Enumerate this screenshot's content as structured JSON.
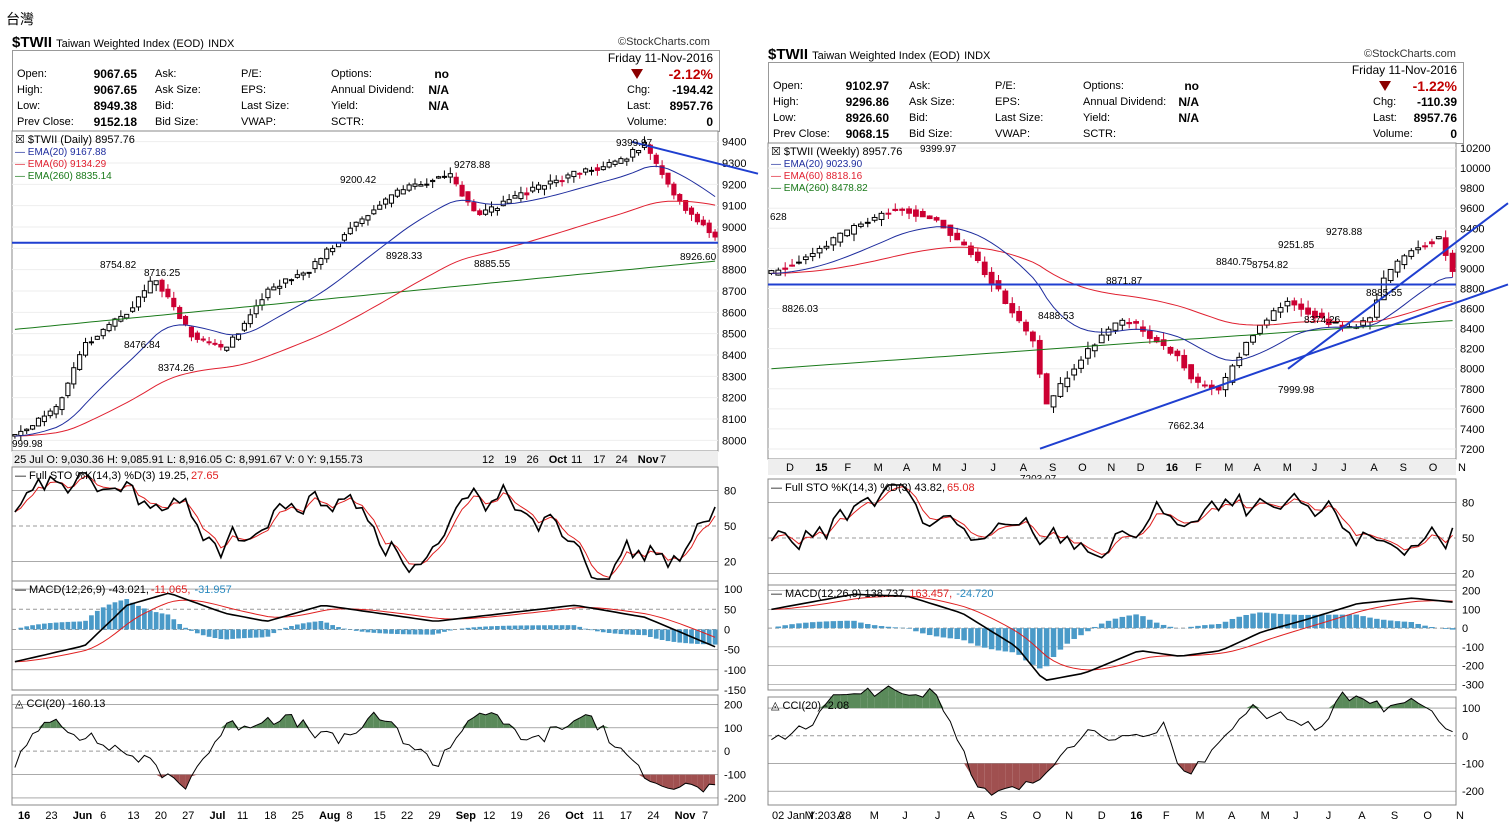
{
  "page": {
    "title": "台灣"
  },
  "panels": [
    {
      "symbol": "$TWII",
      "description": "Taiwan Weighted Index (EOD)",
      "exchange": "INDX",
      "watermark": "©StockCharts.com",
      "quote": {
        "rows": [
          {
            "l1": "Open:",
            "v1": "9067.65",
            "l2": "Ask:",
            "l3": "P/E:",
            "l4": "Options:",
            "v4": "no"
          },
          {
            "l1": "High:",
            "v1": "9067.65",
            "l2": "Ask Size:",
            "l3": "EPS:",
            "l4": "Annual Dividend:",
            "v4": "N/A"
          },
          {
            "l1": "Low:",
            "v1": "8949.38",
            "l2": "Bid:",
            "l3": "Last Size:",
            "l4": "Yield:",
            "v4": "N/A"
          },
          {
            "l1": "Prev Close:",
            "v1": "9152.18",
            "l2": "Bid Size:",
            "l3": "VWAP:",
            "l4": "SCTR:",
            "v4": ""
          }
        ],
        "date": "Friday  11-Nov-2016",
        "pct_change": "-2.12%",
        "right": [
          {
            "label": "Chg:",
            "value": "-194.42"
          },
          {
            "label": "Last:",
            "value": "8957.76"
          },
          {
            "label": "Volume:",
            "value": "0"
          }
        ]
      },
      "price_legend": {
        "series": "$TWII (Daily) 8957.76",
        "ema20": "EMA(20) 9167.88",
        "ema60": "EMA(60) 9134.29",
        "ema260": "EMA(260) 8835.14"
      },
      "ohlc_readout": "25 Jul O: 9,030.36   H: 9,085.91   L: 8,916.05   C: 8,991.67   V: 0   Y: 9,155.73",
      "price_date_labels": [
        "12",
        "19",
        "26",
        "Oct",
        "11",
        "17",
        "24",
        "Nov",
        "7"
      ],
      "bottom_date_labels": [
        "16",
        "23",
        "Jun",
        "6",
        "13",
        "20",
        "27",
        "Jul",
        "11",
        "18",
        "25",
        "Aug",
        "8",
        "15",
        "22",
        "29",
        "Sep",
        "12",
        "19",
        "26",
        "Oct",
        "11",
        "17",
        "24",
        "Nov",
        "7"
      ],
      "sto_legend": {
        "main": "Full STO %K(14,3) %D(3) 19.25,",
        "d": "27.65"
      },
      "macd_legend": {
        "main": "MACD(12,26,9) -43.021,",
        "signal": "-11.065,",
        "hist": "-31.957"
      },
      "cci_legend": "CCI(20) -160.13",
      "annotations": [
        "9399.97",
        "9278.88",
        "9200.42",
        "8928.33",
        "8885.55",
        "8926.60",
        "8754.82",
        "8716.25",
        "8476.84",
        "8374.26",
        "999.98"
      ],
      "price_axis": [
        9400,
        9300,
        9200,
        9100,
        9000,
        8900,
        8800,
        8700,
        8600,
        8500,
        8400,
        8300,
        8200,
        8100,
        8000
      ],
      "sto_axis": [
        80,
        50,
        20
      ],
      "macd_axis": [
        100,
        50,
        0,
        -50,
        -100,
        -150
      ],
      "cci_axis": [
        200,
        100,
        0,
        -100,
        -200
      ]
    },
    {
      "symbol": "$TWII",
      "description": "Taiwan Weighted Index (EOD)",
      "exchange": "INDX",
      "watermark": "©StockCharts.com",
      "quote": {
        "rows": [
          {
            "l1": "Open:",
            "v1": "9102.97",
            "l2": "Ask:",
            "l3": "P/E:",
            "l4": "Options:",
            "v4": "no"
          },
          {
            "l1": "High:",
            "v1": "9296.86",
            "l2": "Ask Size:",
            "l3": "EPS:",
            "l4": "Annual Dividend:",
            "v4": "N/A"
          },
          {
            "l1": "Low:",
            "v1": "8926.60",
            "l2": "Bid:",
            "l3": "Last Size:",
            "l4": "Yield:",
            "v4": "N/A"
          },
          {
            "l1": "Prev Close:",
            "v1": "9068.15",
            "l2": "Bid Size:",
            "l3": "VWAP:",
            "l4": "SCTR:",
            "v4": ""
          }
        ],
        "date": "Friday  11-Nov-2016",
        "pct_change": "-1.22%",
        "right": [
          {
            "label": "Chg:",
            "value": "-110.39"
          },
          {
            "label": "Last:",
            "value": "8957.76"
          },
          {
            "label": "Volume:",
            "value": "0"
          }
        ]
      },
      "price_legend": {
        "series": "$TWII (Weekly) 8957.76",
        "ema20": "EMA(20) 9023.90",
        "ema60": "EMA(60) 8818.16",
        "ema260": "EMA(260) 8478.82"
      },
      "ohlc_readout": "",
      "price_date_labels": [
        "D",
        "15",
        "F",
        "M",
        "A",
        "M",
        "J",
        "J",
        "A",
        "S",
        "O",
        "N",
        "D",
        "16",
        "F",
        "M",
        "A",
        "M",
        "J",
        "J",
        "A",
        "S",
        "O",
        "N"
      ],
      "bottom_date_labels": [
        "02 Jan Y:203.28",
        "M",
        "A",
        "M",
        "J",
        "J",
        "A",
        "S",
        "O",
        "N",
        "D",
        "16",
        "F",
        "M",
        "A",
        "M",
        "J",
        "J",
        "A",
        "S",
        "O",
        "N"
      ],
      "sto_legend": {
        "main": "Full STO %K(14,3) %D(3) 43.82,",
        "d": "65.08"
      },
      "macd_legend": {
        "main": "MACD(12,26,9) 138.737,",
        "signal": "163.457,",
        "hist": "-24.720"
      },
      "cci_legend": "CCI(20) -2.08",
      "annotations": [
        "628",
        "9399.97",
        "9278.88",
        "9251.85",
        "8871.87",
        "8840.75",
        "8754.82",
        "8885.55",
        "8826.03",
        "8488.53",
        "8374.26",
        "7999.98",
        "7662.34",
        "7203.07"
      ],
      "price_axis": [
        10200,
        10000,
        9800,
        9600,
        9400,
        9200,
        9000,
        8800,
        8600,
        8400,
        8200,
        8000,
        7800,
        7600,
        7400,
        7200
      ],
      "sto_axis": [
        80,
        50,
        20
      ],
      "macd_axis": [
        200,
        100,
        0,
        -100,
        -200,
        -300
      ],
      "cci_axis": [
        100,
        0,
        -100,
        -200
      ]
    }
  ],
  "colors": {
    "up": "#000000",
    "down": "#cc0033",
    "ema20": "#1f2d9e",
    "ema60": "#e02030",
    "ema260": "#1a7a1a",
    "trend": "#1f3fd0",
    "macd_hist": "#4a9ac8",
    "cci_pos": "#5a8a5a",
    "cci_neg": "#a05050",
    "pct": "#c00000"
  },
  "chart_data": [
    {
      "type": "candlestick",
      "title": "$TWII Taiwan Weighted Index (EOD) – Daily",
      "ylim": [
        7950,
        9450
      ],
      "ema_last": {
        "ema20": 9167.88,
        "ema60": 9134.29,
        "ema260": 8835.14
      },
      "support_line": 8926.6,
      "key_levels": [
        9399.97,
        9278.88,
        9200.42,
        8928.33,
        8885.55,
        8754.82,
        8716.25,
        8476.84,
        8374.26
      ],
      "last_close": 8957.76
    },
    {
      "type": "candlestick",
      "title": "$TWII Taiwan Weighted Index (EOD) – Weekly",
      "ylim": [
        7100,
        10250
      ],
      "ema_last": {
        "ema20": 9023.9,
        "ema60": 8818.16,
        "ema260": 8478.82
      },
      "support_line": 8840.75,
      "key_levels": [
        9399.97,
        9278.88,
        9251.85,
        8871.87,
        8840.75,
        8754.82,
        8488.53,
        8374.26,
        7999.98,
        7662.34,
        7203.07
      ],
      "last_close": 8957.76
    }
  ]
}
